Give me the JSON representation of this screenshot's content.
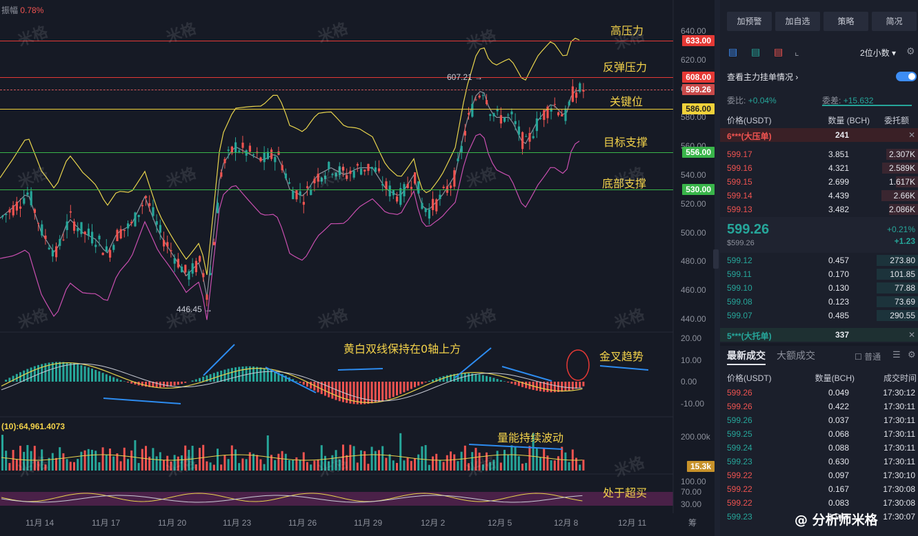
{
  "chart": {
    "amplitude_label": "振幅",
    "amplitude_value": "0.78%",
    "high_label": "607.21",
    "low_label": "446.45",
    "macd_label": "黄白双线保持在0轴上方",
    "volume_label": "(10):64,961.4073",
    "price_axis": [
      "640.00",
      "620.00",
      "600.00",
      "580.00",
      "560.00",
      "540.00",
      "520.00",
      "500.00",
      "480.00",
      "460.00",
      "440.00"
    ],
    "macd_axis": [
      "20.00",
      "10.00",
      "0.00",
      "-10.00"
    ],
    "vol_axis": [
      "200.00k",
      "15.3k"
    ],
    "kdj_axis": [
      "100.00",
      "70.00",
      "30.00"
    ],
    "levels": [
      {
        "name": "高压力",
        "price": "633.00",
        "color": "#e53935"
      },
      {
        "name": "反弹压力",
        "price": "608.00",
        "color": "#e53935"
      },
      {
        "name": "current",
        "price": "599.26",
        "color": "#d65a5a"
      },
      {
        "name": "关键位",
        "price": "586.00",
        "color": "#f0d23a"
      },
      {
        "name": "目标支撑",
        "price": "556.00",
        "color": "#39b54a"
      },
      {
        "name": "底部支撑",
        "price": "530.00",
        "color": "#39b54a"
      }
    ],
    "annotations": {
      "high_pressure": "高压力",
      "rebound_pressure": "反弹压力",
      "key_level": "关键位",
      "target_support": "目标支撑",
      "bottom_support": "底部支撑",
      "golden_cross": "金叉趋势",
      "volume_fluct": "量能持续波动",
      "overbought": "处于超买"
    },
    "dates": [
      "11月 14",
      "11月 17",
      "11月 20",
      "11月 23",
      "11月 26",
      "11月 29",
      "12月 2",
      "12月 5",
      "12月 8",
      "12月 11"
    ],
    "corner_label": "筹",
    "watermark": "米格",
    "author": "@ 分析师米格"
  },
  "panel": {
    "buttons": [
      "加预警",
      "加自选",
      "策略",
      "简况"
    ],
    "decimals": "2位小数",
    "main_orders_label": "查看主力挂单情况",
    "wei_bi_label": "委比:",
    "wei_bi_value": "+0.04%",
    "wei_cha_label": "委差:",
    "wei_cha_value": "+15.632",
    "col_price": "价格(USDT)",
    "col_qty": "数量 (BCH)",
    "col_amount": "委托额",
    "big_sell_label": "6***(大压单)",
    "big_sell_value": "241",
    "asks": [
      {
        "price": "599.17",
        "qty": "3.851",
        "amount": "2.307K"
      },
      {
        "price": "599.16",
        "qty": "4.321",
        "amount": "2.589K"
      },
      {
        "price": "599.15",
        "qty": "2.699",
        "amount": "1.617K"
      },
      {
        "price": "599.14",
        "qty": "4.439",
        "amount": "2.66K"
      },
      {
        "price": "599.13",
        "qty": "3.482",
        "amount": "2.086K"
      }
    ],
    "last_price": "599.26",
    "last_price_usd": "$599.26",
    "change_pct": "+0.21%",
    "change_abs": "+1.23",
    "bids": [
      {
        "price": "599.12",
        "qty": "0.457",
        "amount": "273.80"
      },
      {
        "price": "599.11",
        "qty": "0.170",
        "amount": "101.85"
      },
      {
        "price": "599.10",
        "qty": "0.130",
        "amount": "77.88"
      },
      {
        "price": "599.08",
        "qty": "0.123",
        "amount": "73.69"
      },
      {
        "price": "599.07",
        "qty": "0.485",
        "amount": "290.55"
      }
    ],
    "big_buy_label": "5***(大托单)",
    "big_buy_value": "337",
    "tab_latest": "最新成交",
    "tab_large": "大额成交",
    "normal_label": "普通",
    "trade_col_price": "价格(USDT)",
    "trade_col_qty": "数量(BCH)",
    "trade_col_time": "成交时间",
    "trades": [
      {
        "price": "599.26",
        "qty": "0.049",
        "time": "17:30:12",
        "side": "red"
      },
      {
        "price": "599.26",
        "qty": "0.422",
        "time": "17:30:11",
        "side": "red"
      },
      {
        "price": "599.26",
        "qty": "0.037",
        "time": "17:30:11",
        "side": "green"
      },
      {
        "price": "599.25",
        "qty": "0.068",
        "time": "17:30:11",
        "side": "green"
      },
      {
        "price": "599.24",
        "qty": "0.088",
        "time": "17:30:11",
        "side": "green"
      },
      {
        "price": "599.23",
        "qty": "0.630",
        "time": "17:30:11",
        "side": "green"
      },
      {
        "price": "599.22",
        "qty": "0.097",
        "time": "17:30:10",
        "side": "red"
      },
      {
        "price": "599.22",
        "qty": "0.167",
        "time": "17:30:08",
        "side": "red"
      },
      {
        "price": "599.22",
        "qty": "0.083",
        "time": "17:30:08",
        "side": "red"
      },
      {
        "price": "599.23",
        "qty": "1.945",
        "time": "17:30:07",
        "side": "green"
      }
    ]
  }
}
